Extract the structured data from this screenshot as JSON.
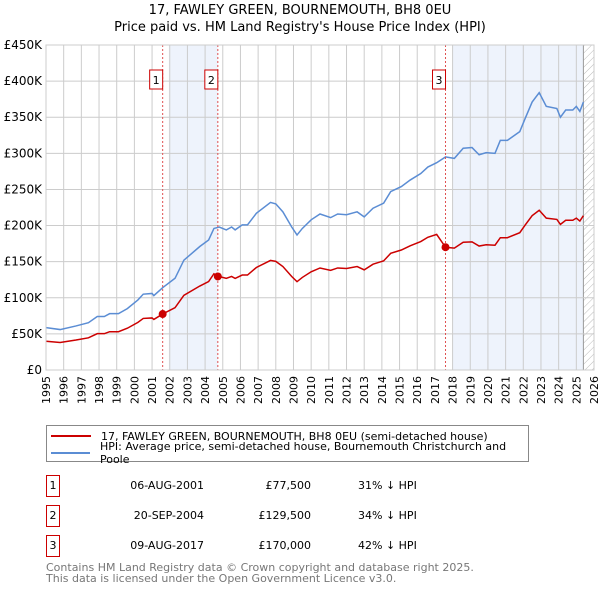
{
  "chart_data": {
    "type": "line",
    "title": "17, FAWLEY GREEN, BOURNEMOUTH, BH8 0EU",
    "subtitle": "Price paid vs. HM Land Registry's House Price Index (HPI)",
    "xlabel": "",
    "ylabel": "",
    "xlim": [
      1995,
      2026
    ],
    "ylim": [
      0,
      450000
    ],
    "x_ticks": [
      "1995",
      "1996",
      "1997",
      "1998",
      "1999",
      "2000",
      "2001",
      "2002",
      "2003",
      "2004",
      "2005",
      "2006",
      "2007",
      "2008",
      "2009",
      "2010",
      "2011",
      "2012",
      "2013",
      "2014",
      "2015",
      "2016",
      "2017",
      "2018",
      "2019",
      "2020",
      "2021",
      "2022",
      "2023",
      "2024",
      "2025",
      "2026"
    ],
    "y_ticks": [
      {
        "v": 0,
        "label": "£0"
      },
      {
        "v": 50000,
        "label": "£50K"
      },
      {
        "v": 100000,
        "label": "£100K"
      },
      {
        "v": 150000,
        "label": "£150K"
      },
      {
        "v": 200000,
        "label": "£200K"
      },
      {
        "v": 250000,
        "label": "£250K"
      },
      {
        "v": 300000,
        "label": "£300K"
      },
      {
        "v": 350000,
        "label": "£350K"
      },
      {
        "v": 400000,
        "label": "£400K"
      },
      {
        "v": 450000,
        "label": "£450K"
      }
    ],
    "grid": true,
    "colors": {
      "price": "#cc0000",
      "hpi": "#5b8dd4",
      "shade": "#eef3fc"
    },
    "shaded_ranges": [
      [
        2001.95,
        2004.72
      ],
      [
        2018.0,
        2025.4
      ]
    ],
    "hatch_from": 2025.4,
    "series": [
      {
        "name": "17, FAWLEY GREEN, BOURNEMOUTH, BH8 0EU (semi-detached house)",
        "key": "price",
        "derived_from_hpi_ratios": [
          {
            "until": 2001.6,
            "ratio": 0.68
          },
          {
            "until": 2004.72,
            "ratio": 0.68
          },
          {
            "until": 2017.6,
            "ratio": 0.654
          },
          {
            "until": 2030,
            "ratio": 0.576
          }
        ]
      },
      {
        "name": "HPI: Average price, semi-detached house, Bournemouth Christchurch and Poole",
        "key": "hpi",
        "x": [
          1995,
          1995.8,
          1996.7,
          1997.4,
          1997.9,
          1998.3,
          1998.6,
          1999.1,
          1999.6,
          2000.2,
          2000.5,
          2001,
          2001.1,
          2001.6,
          2002.3,
          2002.8,
          2003.7,
          2004.2,
          2004.5,
          2004.8,
          2005.2,
          2005.5,
          2005.7,
          2006.1,
          2006.4,
          2006.9,
          2007.7,
          2008,
          2008.4,
          2008.9,
          2009.2,
          2009.5,
          2010,
          2010.5,
          2011.1,
          2011.5,
          2012,
          2012.6,
          2013,
          2013.5,
          2014.1,
          2014.5,
          2015.1,
          2015.6,
          2016.2,
          2016.6,
          2017.1,
          2017.6,
          2018.1,
          2018.6,
          2019.1,
          2019.5,
          2019.9,
          2020.4,
          2020.7,
          2021.1,
          2021.8,
          2022.1,
          2022.5,
          2022.9,
          2023.3,
          2023.9,
          2024.1,
          2024.4,
          2024.8,
          2025,
          2025.2,
          2025.4
        ],
        "y": [
          58600,
          56000,
          61000,
          65500,
          74000,
          74000,
          78000,
          78000,
          85000,
          97000,
          105000,
          106000,
          103000,
          114000,
          127000,
          152000,
          171000,
          180000,
          196000,
          198000,
          194000,
          198000,
          194000,
          201000,
          201000,
          217000,
          232000,
          230000,
          219000,
          198000,
          187000,
          196000,
          208000,
          216000,
          211000,
          216000,
          215000,
          219000,
          212000,
          224000,
          231000,
          247000,
          254000,
          263000,
          272000,
          281000,
          287000,
          295000,
          293000,
          307000,
          308000,
          298000,
          301000,
          300000,
          318000,
          318000,
          330000,
          348000,
          371000,
          384000,
          365000,
          362000,
          350000,
          360000,
          360000,
          365000,
          358000,
          371000
        ]
      }
    ],
    "sales": [
      {
        "label": "1",
        "x": 2001.6,
        "price": 77500
      },
      {
        "label": "2",
        "x": 2004.72,
        "price": 129500
      },
      {
        "label": "3",
        "x": 2017.6,
        "price": 170000
      }
    ]
  },
  "title_line1": "17, FAWLEY GREEN, BOURNEMOUTH, BH8 0EU",
  "title_line2": "Price paid vs. HM Land Registry's House Price Index (HPI)",
  "legend": {
    "price": "17, FAWLEY GREEN, BOURNEMOUTH, BH8 0EU (semi-detached house)",
    "hpi": "HPI: Average price, semi-detached house, Bournemouth Christchurch and Poole"
  },
  "transactions": [
    {
      "num": "1",
      "date": "06-AUG-2001",
      "price": "£77,500",
      "hpi": "31% ↓ HPI"
    },
    {
      "num": "2",
      "date": "20-SEP-2004",
      "price": "£129,500",
      "hpi": "34% ↓ HPI"
    },
    {
      "num": "3",
      "date": "09-AUG-2017",
      "price": "£170,000",
      "hpi": "42% ↓ HPI"
    }
  ],
  "footer": {
    "line1": "Contains HM Land Registry data © Crown copyright and database right 2025.",
    "line2": "This data is licensed under the Open Government Licence v3.0."
  }
}
